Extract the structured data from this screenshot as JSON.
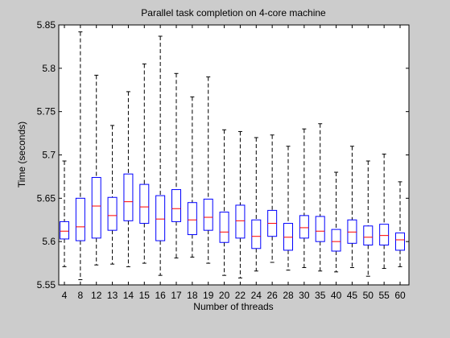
{
  "chart_data": {
    "type": "boxplot",
    "title": "Parallel task completion on 4-core machine",
    "xlabel": "Number of threads",
    "ylabel": "Time (seconds)",
    "categories": [
      "4",
      "8",
      "12",
      "13",
      "14",
      "15",
      "16",
      "17",
      "18",
      "19",
      "20",
      "22",
      "24",
      "26",
      "28",
      "30",
      "35",
      "40",
      "45",
      "50",
      "55",
      "60"
    ],
    "ylim": [
      5.55,
      5.85
    ],
    "yticks": [
      5.55,
      5.6,
      5.65,
      5.7,
      5.75,
      5.8,
      5.85
    ],
    "ytick_labels": [
      "5.55",
      "5.6",
      "5.65",
      "5.7",
      "5.75",
      "5.8",
      "5.85"
    ],
    "boxes": [
      {
        "category": "4",
        "whisker_low": 5.571,
        "q1": 5.603,
        "median": 5.612,
        "q3": 5.623,
        "whisker_high": 5.693
      },
      {
        "category": "8",
        "whisker_low": 5.556,
        "q1": 5.601,
        "median": 5.617,
        "q3": 5.65,
        "whisker_high": 5.842
      },
      {
        "category": "12",
        "whisker_low": 5.573,
        "q1": 5.604,
        "median": 5.641,
        "q3": 5.674,
        "whisker_high": 5.792
      },
      {
        "category": "13",
        "whisker_low": 5.574,
        "q1": 5.613,
        "median": 5.63,
        "q3": 5.651,
        "whisker_high": 5.734
      },
      {
        "category": "14",
        "whisker_low": 5.571,
        "q1": 5.624,
        "median": 5.646,
        "q3": 5.678,
        "whisker_high": 5.773
      },
      {
        "category": "15",
        "whisker_low": 5.575,
        "q1": 5.621,
        "median": 5.64,
        "q3": 5.666,
        "whisker_high": 5.805
      },
      {
        "category": "16",
        "whisker_low": 5.561,
        "q1": 5.601,
        "median": 5.626,
        "q3": 5.653,
        "whisker_high": 5.837
      },
      {
        "category": "17",
        "whisker_low": 5.581,
        "q1": 5.623,
        "median": 5.638,
        "q3": 5.66,
        "whisker_high": 5.794
      },
      {
        "category": "18",
        "whisker_low": 5.582,
        "q1": 5.608,
        "median": 5.625,
        "q3": 5.645,
        "whisker_high": 5.767
      },
      {
        "category": "19",
        "whisker_low": 5.575,
        "q1": 5.613,
        "median": 5.628,
        "q3": 5.649,
        "whisker_high": 5.79
      },
      {
        "category": "20",
        "whisker_low": 5.561,
        "q1": 5.599,
        "median": 5.611,
        "q3": 5.634,
        "whisker_high": 5.729
      },
      {
        "category": "22",
        "whisker_low": 5.558,
        "q1": 5.604,
        "median": 5.624,
        "q3": 5.642,
        "whisker_high": 5.727
      },
      {
        "category": "24",
        "whisker_low": 5.566,
        "q1": 5.592,
        "median": 5.606,
        "q3": 5.625,
        "whisker_high": 5.72
      },
      {
        "category": "26",
        "whisker_low": 5.576,
        "q1": 5.606,
        "median": 5.621,
        "q3": 5.636,
        "whisker_high": 5.723
      },
      {
        "category": "28",
        "whisker_low": 5.567,
        "q1": 5.59,
        "median": 5.605,
        "q3": 5.621,
        "whisker_high": 5.71
      },
      {
        "category": "30",
        "whisker_low": 5.57,
        "q1": 5.604,
        "median": 5.616,
        "q3": 5.63,
        "whisker_high": 5.73
      },
      {
        "category": "35",
        "whisker_low": 5.566,
        "q1": 5.6,
        "median": 5.612,
        "q3": 5.629,
        "whisker_high": 5.736
      },
      {
        "category": "40",
        "whisker_low": 5.565,
        "q1": 5.589,
        "median": 5.6,
        "q3": 5.614,
        "whisker_high": 5.68
      },
      {
        "category": "45",
        "whisker_low": 5.57,
        "q1": 5.598,
        "median": 5.611,
        "q3": 5.625,
        "whisker_high": 5.71
      },
      {
        "category": "50",
        "whisker_low": 5.56,
        "q1": 5.596,
        "median": 5.605,
        "q3": 5.618,
        "whisker_high": 5.693
      },
      {
        "category": "55",
        "whisker_low": 5.569,
        "q1": 5.596,
        "median": 5.607,
        "q3": 5.62,
        "whisker_high": 5.701
      },
      {
        "category": "60",
        "whisker_low": 5.571,
        "q1": 5.59,
        "median": 5.602,
        "q3": 5.61,
        "whisker_high": 5.669
      }
    ],
    "box_color": "#0000ff",
    "median_color": "#ff0000",
    "whisker_color": "#000000",
    "whisker_style": "dashed",
    "plot_background": "#ffffff",
    "figure_background": "#cccccc",
    "grid": false,
    "legend": "none"
  }
}
